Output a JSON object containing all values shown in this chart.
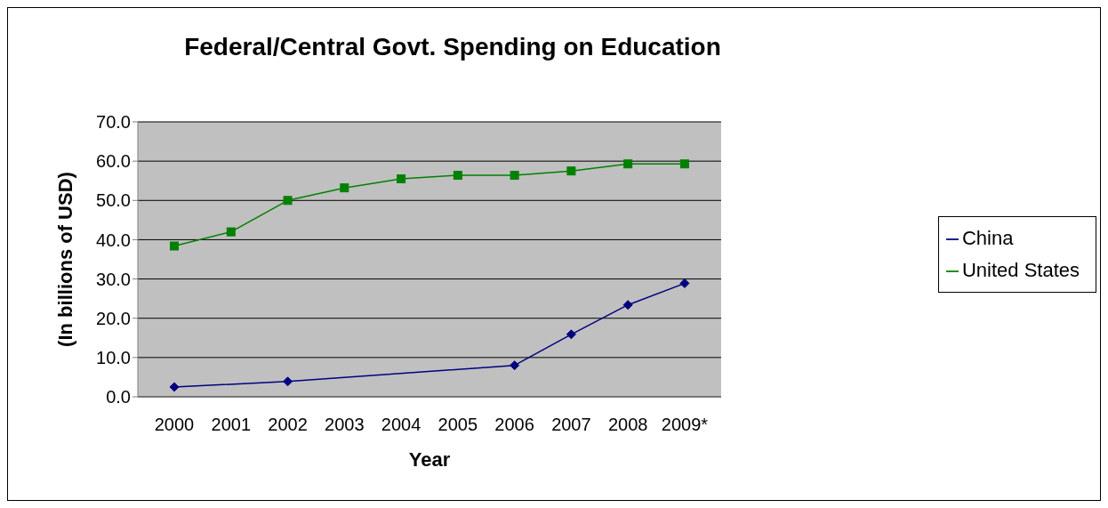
{
  "chart_data": {
    "type": "line",
    "title": "Federal/Central Govt. Spending on Education",
    "xlabel": "Year",
    "ylabel": "(In billions of USD)",
    "categories": [
      "2000",
      "2001",
      "2002",
      "2003",
      "2004",
      "2005",
      "2006",
      "2007",
      "2008",
      "2009*"
    ],
    "series": [
      {
        "name": "China",
        "color": "#000080",
        "marker": "diamond",
        "values": [
          2.5,
          null,
          3.9,
          null,
          null,
          null,
          8.0,
          15.9,
          23.4,
          28.9
        ]
      },
      {
        "name": "United States",
        "color": "#008000",
        "marker": "square",
        "values": [
          38.4,
          42.0,
          50.0,
          53.2,
          55.5,
          56.4,
          56.4,
          57.5,
          59.3,
          59.3
        ]
      }
    ],
    "ylim": [
      0,
      70
    ],
    "yticks": [
      {
        "value": 0,
        "label": "0.0"
      },
      {
        "value": 10,
        "label": "10.0"
      },
      {
        "value": 20,
        "label": "20.0"
      },
      {
        "value": 30,
        "label": "30.0"
      },
      {
        "value": 40,
        "label": "40.0"
      },
      {
        "value": 50,
        "label": "50.0"
      },
      {
        "value": 60,
        "label": "60.0"
      },
      {
        "value": 70,
        "label": "70.0"
      }
    ],
    "grid": "y",
    "legend": "right",
    "line_style": "solid"
  }
}
